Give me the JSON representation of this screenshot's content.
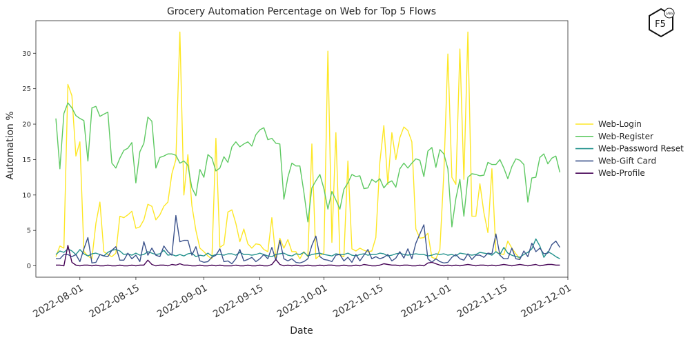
{
  "chart_data": {
    "type": "line",
    "title": "Grocery Automation Percentage on Web for Top 5 Flows",
    "xlabel": "Date",
    "ylabel": "Automation %",
    "x_start": "2022-07-26",
    "x_range": [
      "2022-07-21",
      "2022-12-01"
    ],
    "ylim": [
      -1.6,
      34.6
    ],
    "yticks": [
      0,
      5,
      10,
      15,
      20,
      25,
      30
    ],
    "xticks": [
      "2022-08-01",
      "2022-08-15",
      "2022-09-01",
      "2022-09-15",
      "2022-10-01",
      "2022-10-15",
      "2022-11-01",
      "2022-11-15",
      "2022-12-01"
    ],
    "grid": false,
    "legend_position": "right",
    "series": [
      {
        "name": "Web-Login",
        "color": "#fde725",
        "values": [
          1.3,
          2.8,
          2.5,
          25.6,
          24.0,
          15.5,
          17.5,
          2.0,
          1.4,
          1.0,
          6.0,
          9.0,
          2.0,
          1.6,
          1.3,
          1.8,
          7.0,
          6.8,
          7.2,
          7.7,
          5.3,
          5.5,
          6.5,
          8.7,
          8.4,
          6.5,
          7.2,
          8.4,
          9.0,
          13.0,
          15.0,
          33.0,
          10.0,
          15.7,
          8.5,
          5.0,
          2.5,
          2.0,
          1.4,
          1.0,
          18.0,
          2.6,
          3.0,
          7.6,
          7.9,
          6.0,
          3.4,
          5.2,
          3.1,
          2.5,
          3.1,
          3.0,
          2.3,
          2.0,
          6.8,
          1.0,
          3.9,
          2.5,
          3.7,
          2.0,
          2.0,
          1.0,
          2.0,
          1.3,
          17.2,
          1.0,
          1.5,
          1.8,
          30.3,
          3.3,
          18.8,
          1.5,
          1.3,
          14.8,
          2.4,
          2.1,
          2.5,
          2.2,
          2.0,
          2.1,
          4.0,
          14.6,
          19.8,
          11.5,
          18.8,
          15.0,
          18.1,
          19.6,
          19.1,
          17.5,
          5.2,
          3.9,
          4.0,
          4.6,
          1.2,
          1.0,
          2.3,
          13.2,
          29.9,
          12.5,
          11.5,
          30.6,
          12.2,
          33.0,
          7.0,
          7.0,
          11.6,
          7.5,
          4.7,
          13.7,
          2.0,
          1.7,
          1.6,
          3.5,
          2.5,
          1.7,
          1.0
        ]
      },
      {
        "name": "Web-Register",
        "color": "#5ec962",
        "values": [
          20.8,
          13.7,
          21.5,
          23.0,
          22.3,
          21.2,
          20.8,
          20.5,
          14.8,
          22.3,
          22.5,
          21.1,
          21.4,
          21.7,
          14.5,
          13.8,
          15.2,
          16.3,
          16.6,
          17.4,
          11.7,
          16.1,
          17.3,
          21.0,
          20.4,
          13.8,
          15.3,
          15.5,
          15.8,
          15.8,
          15.6,
          14.5,
          14.8,
          14.2,
          11.0,
          9.9,
          13.6,
          12.5,
          15.7,
          15.2,
          13.4,
          13.8,
          15.4,
          14.6,
          16.8,
          17.5,
          16.8,
          17.2,
          17.5,
          16.9,
          18.5,
          19.2,
          19.5,
          17.8,
          18.0,
          17.3,
          17.2,
          9.4,
          12.5,
          14.5,
          14.1,
          14.1,
          10.4,
          6.2,
          11.0,
          12.0,
          12.9,
          10.9,
          8.0,
          10.5,
          9.3,
          8.0,
          10.8,
          11.7,
          12.9,
          12.6,
          12.7,
          10.9,
          11.0,
          12.2,
          11.8,
          12.3,
          11.0,
          11.7,
          12.0,
          11.1,
          13.7,
          14.5,
          13.8,
          14.5,
          15.1,
          14.9,
          12.6,
          16.2,
          16.7,
          13.9,
          16.4,
          15.8,
          13.7,
          5.5,
          9.5,
          12.2,
          7.0,
          12.5,
          13.0,
          12.9,
          12.7,
          12.8,
          14.6,
          14.3,
          14.3,
          15.0,
          13.8,
          12.3,
          14.0,
          15.1,
          14.9,
          14.3,
          9.0,
          12.4,
          12.5,
          15.3,
          15.8,
          14.4,
          15.2,
          15.5,
          13.2
        ]
      },
      {
        "name": "Web-Password Reset",
        "color": "#21918c",
        "values": [
          1.6,
          2.1,
          1.9,
          2.4,
          2.1,
          1.6,
          2.3,
          1.7,
          1.4,
          1.7,
          1.8,
          1.6,
          1.4,
          1.9,
          2.2,
          2.3,
          2.1,
          1.6,
          1.7,
          1.5,
          1.8,
          1.5,
          1.6,
          2.0,
          1.8,
          1.6,
          1.7,
          2.2,
          1.5,
          1.6,
          1.4,
          1.6,
          1.4,
          1.7,
          1.8,
          1.3,
          1.5,
          1.4,
          1.8,
          1.4,
          1.6,
          1.6,
          1.5,
          1.7,
          1.7,
          1.5,
          1.9,
          1.6,
          1.6,
          1.5,
          1.6,
          1.8,
          1.6,
          1.4,
          1.3,
          1.6,
          1.7,
          1.8,
          1.5,
          1.4,
          1.7,
          1.6,
          1.9,
          1.4,
          1.6,
          1.7,
          1.8,
          1.6,
          1.5,
          1.4,
          1.7,
          1.6,
          1.6,
          1.8,
          1.5,
          1.4,
          1.6,
          1.7,
          1.5,
          1.6,
          1.6,
          1.8,
          1.7,
          1.4,
          1.5,
          1.7,
          1.8,
          1.6,
          1.5,
          1.6,
          1.7,
          1.6,
          1.6,
          1.4,
          1.5,
          1.7,
          1.6,
          1.7,
          1.5,
          1.6,
          1.4,
          1.8,
          1.7,
          1.6,
          1.5,
          1.6,
          1.9,
          1.8,
          1.7,
          1.5,
          2.0,
          1.6,
          2.6,
          1.8,
          1.5,
          1.3,
          1.2,
          1.6,
          1.9,
          2.4,
          3.8,
          2.8,
          1.2,
          2.0,
          1.7,
          1.3,
          1.0
        ]
      },
      {
        "name": "Web-Gift Card",
        "color": "#3b528b",
        "values": [
          1.0,
          1.0,
          1.6,
          1.6,
          1.3,
          1.6,
          0.6,
          2.4,
          4.0,
          0.4,
          0.5,
          1.6,
          1.4,
          1.3,
          2.2,
          2.7,
          0.8,
          0.8,
          1.8,
          1.0,
          1.5,
          0.6,
          3.4,
          1.5,
          2.5,
          1.5,
          1.3,
          2.8,
          2.0,
          1.5,
          7.1,
          3.4,
          3.6,
          3.6,
          1.5,
          2.7,
          0.7,
          0.5,
          0.6,
          1.2,
          1.5,
          2.4,
          0.6,
          0.7,
          0.3,
          1.0,
          2.3,
          0.7,
          0.9,
          1.2,
          0.6,
          1.0,
          1.6,
          1.0,
          2.6,
          0.8,
          3.6,
          1.0,
          0.7,
          1.0,
          0.5,
          0.4,
          0.6,
          1.0,
          2.9,
          4.2,
          1.3,
          0.9,
          0.8,
          0.6,
          1.5,
          1.6,
          0.7,
          1.2,
          0.5,
          1.6,
          0.7,
          1.5,
          2.3,
          1.0,
          1.3,
          1.0,
          1.2,
          1.6,
          0.7,
          1.1,
          2.0,
          1.1,
          2.4,
          1.0,
          3.2,
          4.5,
          5.8,
          1.0,
          0.5,
          1.0,
          0.6,
          0.4,
          0.5,
          1.2,
          1.6,
          1.0,
          0.8,
          1.7,
          0.9,
          1.5,
          1.5,
          1.2,
          1.8,
          1.7,
          4.5,
          1.5,
          1.0,
          1.0,
          2.5,
          1.0,
          0.9,
          2.1,
          1.3,
          3.2,
          2.0,
          2.5,
          1.7,
          1.8,
          3.0,
          3.5,
          2.6
        ]
      },
      {
        "name": "Web-Profile",
        "color": "#440154",
        "values": [
          0.1,
          0.1,
          0.0,
          2.9,
          0.5,
          0.1,
          0.0,
          0.1,
          0.1,
          0.0,
          0.1,
          0.0,
          0.0,
          0.1,
          0.0,
          0.0,
          0.1,
          0.0,
          0.0,
          0.1,
          0.0,
          0.1,
          0.1,
          0.8,
          0.2,
          0.0,
          0.1,
          0.1,
          0.0,
          0.2,
          0.1,
          0.3,
          0.1,
          0.1,
          0.0,
          0.0,
          0.1,
          0.0,
          0.0,
          0.1,
          0.0,
          0.1,
          0.0,
          0.0,
          0.0,
          0.1,
          0.0,
          0.0,
          0.1,
          0.0,
          0.0,
          0.1,
          0.0,
          0.0,
          0.2,
          0.9,
          0.2,
          0.0,
          0.1,
          0.0,
          0.1,
          0.0,
          0.0,
          0.1,
          0.0,
          0.0,
          0.1,
          0.0,
          0.1,
          0.1,
          0.0,
          0.0,
          0.1,
          0.0,
          0.0,
          0.1,
          0.0,
          0.2,
          0.1,
          0.0,
          0.0,
          0.1,
          0.3,
          0.2,
          0.1,
          0.1,
          0.0,
          0.1,
          0.1,
          0.0,
          0.0,
          0.1,
          0.0,
          0.4,
          0.5,
          0.3,
          0.1,
          0.0,
          0.1,
          0.0,
          0.1,
          0.0,
          0.1,
          0.2,
          0.1,
          0.0,
          0.1,
          0.1,
          0.0,
          0.1,
          0.0,
          0.1,
          0.2,
          0.1,
          0.0,
          0.1,
          0.2,
          0.1,
          0.0,
          0.1,
          0.2,
          0.0,
          0.1,
          0.2,
          0.2,
          0.1,
          0.1
        ]
      }
    ]
  },
  "logo": {
    "text": "F5",
    "subtext": "LABS"
  }
}
